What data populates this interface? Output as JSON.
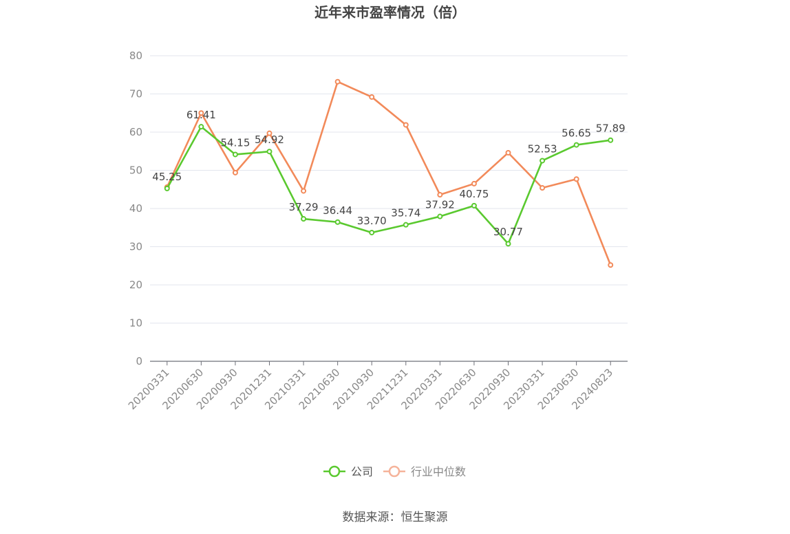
{
  "chart_data": {
    "type": "line",
    "title": "近年来市盈率情况（倍）",
    "source": "数据来源：恒生聚源",
    "categories": [
      "20200331",
      "20200630",
      "20200930",
      "20201231",
      "20210331",
      "20210630",
      "20210930",
      "20211231",
      "20220331",
      "20220630",
      "20220930",
      "20230331",
      "20230630",
      "20240823"
    ],
    "ylim": [
      0,
      80
    ],
    "yticks": [
      0,
      10,
      20,
      30,
      40,
      50,
      60,
      70,
      80
    ],
    "grid": true,
    "legend_position": "bottom-center",
    "series": [
      {
        "name": "公司",
        "color": "#5ac92f",
        "labels": [
          "45.25",
          "61.41",
          "54.15",
          "54.92",
          "37.29",
          "36.44",
          "33.70",
          "35.74",
          "37.92",
          "40.75",
          "30.77",
          "52.53",
          "56.65",
          "57.89"
        ],
        "values": [
          45.25,
          61.41,
          54.15,
          54.92,
          37.29,
          36.44,
          33.7,
          35.74,
          37.92,
          40.75,
          30.77,
          52.53,
          56.65,
          57.89
        ]
      },
      {
        "name": "行业中位数",
        "color": "#f28a5a",
        "values": [
          45.6,
          65.0,
          49.4,
          59.7,
          44.6,
          73.2,
          69.2,
          61.9,
          43.6,
          46.5,
          54.6,
          45.4,
          47.7,
          25.2
        ]
      }
    ]
  }
}
